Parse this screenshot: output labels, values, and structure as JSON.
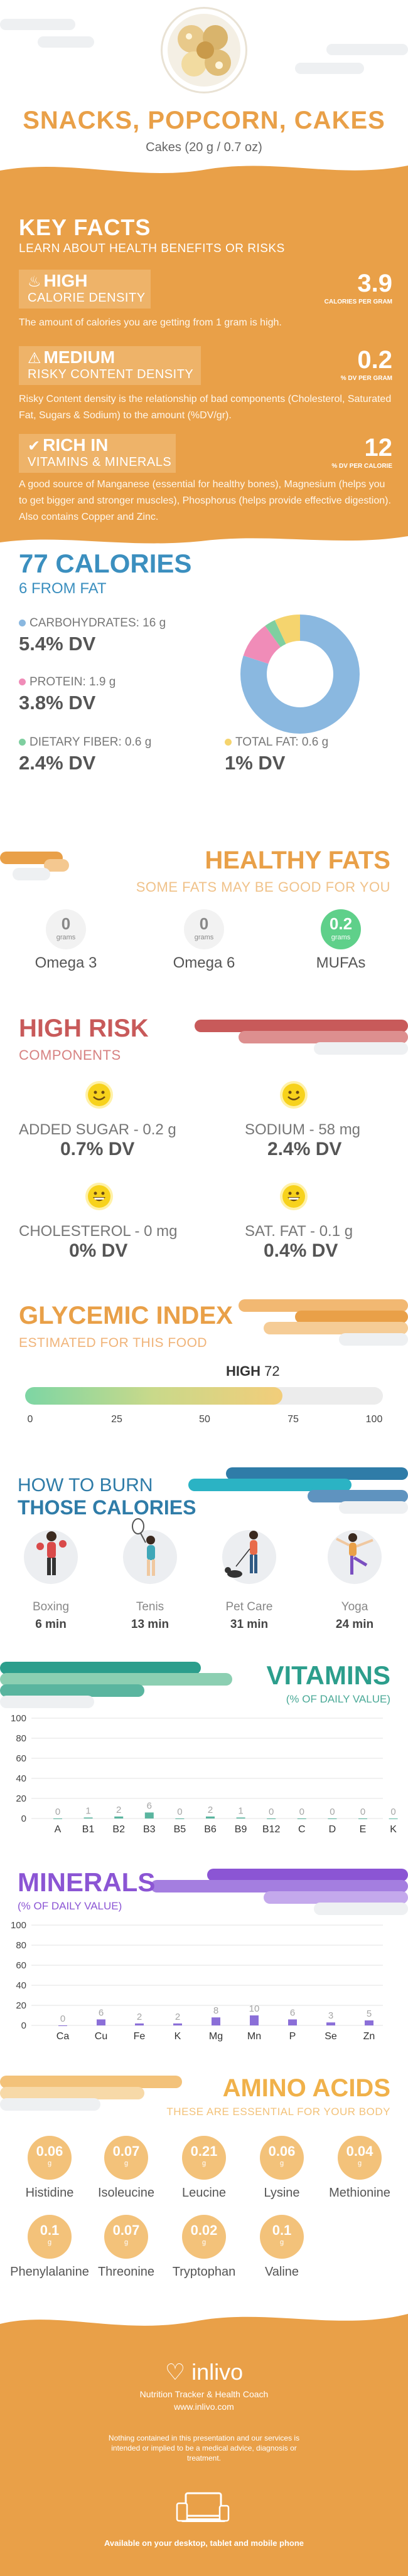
{
  "hero": {
    "title": "SNACKS, POPCORN, CAKES",
    "serving": "Cakes (20 g / 0.7 oz)"
  },
  "key_facts": {
    "title": "KEY FACTS",
    "subtitle": "LEARN ABOUT HEALTH BENEFITS OR RISKS",
    "items": [
      {
        "level": "HIGH",
        "label": "CALORIE DENSITY",
        "value": "3.9",
        "unit": "CALORIES PER GRAM",
        "icon": "flame-icon",
        "desc": "The amount of calories you are getting from 1 gram is high."
      },
      {
        "level": "MEDIUM",
        "label": "RISKY CONTENT DENSITY",
        "value": "0.2",
        "unit": "% DV PER GRAM",
        "icon": "warning-icon",
        "desc": "Risky Content density is the relationship of bad components (Cholesterol, Saturated Fat, Sugars & Sodium) to the amount (%DV/gr)."
      },
      {
        "level": "RICH  IN",
        "label": "VITAMINS & MINERALS",
        "value": "12",
        "unit": "% DV PER CALORIE",
        "icon": "thumbs-up-icon",
        "desc": "A good source of Manganese (essential for healthy bones), Magnesium (helps you to get bigger and stronger muscles), Phosphorus (helps provide effective digestion). Also contains Copper and Zinc."
      }
    ]
  },
  "calories": {
    "title": "77 CALORIES",
    "subtitle": "6 FROM FAT",
    "carbs": {
      "label": "CARBOHYDRATES: 16 g",
      "dv": "5.4% DV",
      "color": "#8ab8e0",
      "share": 0.8
    },
    "protein": {
      "label": "PROTEIN: 1.9 g",
      "dv": "3.8% DV",
      "color": "#f08cb8",
      "share": 0.1
    },
    "fiber": {
      "label": "DIETARY FIBER: 0.6 g",
      "dv": "2.4% DV",
      "color": "#7fcfa0",
      "share": 0.03
    },
    "fat": {
      "label": "TOTAL FAT: 0.6 g",
      "dv": "1% DV",
      "color": "#f5d46e",
      "share": 0.07
    }
  },
  "healthy_fats": {
    "title": "HEALTHY FATS",
    "subtitle": "SOME FATS MAY BE GOOD FOR YOU",
    "unit": "grams",
    "items": [
      {
        "name": "Omega 3",
        "value": "0"
      },
      {
        "name": "Omega 6",
        "value": "0"
      },
      {
        "name": "MUFAs",
        "value": "0.2"
      }
    ]
  },
  "high_risk": {
    "title": "HIGH RISK",
    "subtitle": "COMPONENTS",
    "items": [
      {
        "label": "ADDED SUGAR - 0.2 g",
        "dv": "0.7% DV",
        "icon": "smile-icon"
      },
      {
        "label": "SODIUM - 58 mg",
        "dv": "2.4% DV",
        "icon": "smile-icon"
      },
      {
        "label": "CHOLESTEROL - 0 mg",
        "dv": "0% DV",
        "icon": "grin-icon"
      },
      {
        "label": "SAT. FAT - 0.1 g",
        "dv": "0.4% DV",
        "icon": "grin-icon"
      }
    ]
  },
  "glycemic": {
    "title": "GLYCEMIC INDEX",
    "subtitle": "ESTIMATED FOR THIS FOOD",
    "level": "HIGH",
    "value": 72,
    "ticks": [
      "0",
      "25",
      "50",
      "75",
      "100"
    ]
  },
  "burn": {
    "title_line1": "HOW TO BURN",
    "title_line2": "THOSE CALORIES",
    "activities": [
      {
        "name": "Boxing",
        "time": "6 min",
        "icon": "boxing-icon"
      },
      {
        "name": "Tenis",
        "time": "13 min",
        "icon": "tennis-icon"
      },
      {
        "name": "Pet Care",
        "time": "31 min",
        "icon": "dog-walking-icon"
      },
      {
        "name": "Yoga",
        "time": "24 min",
        "icon": "yoga-icon"
      }
    ]
  },
  "vitamins": {
    "title": "VITAMINS",
    "subtitle": "(% OF DAILY VALUE)",
    "chart_data": {
      "type": "bar",
      "categories": [
        "A",
        "B1",
        "B2",
        "B3",
        "B5",
        "B6",
        "B9",
        "B12",
        "C",
        "D",
        "E",
        "K"
      ],
      "values": [
        0,
        1,
        2,
        6,
        0,
        2,
        1,
        0,
        0,
        0,
        0,
        0
      ],
      "ylim": [
        0,
        100
      ],
      "yticks": [
        "0",
        "20",
        "40",
        "60",
        "80",
        "100"
      ],
      "color": "#5ab59f"
    }
  },
  "minerals": {
    "title": "MINERALS",
    "subtitle": "(% OF DAILY VALUE)",
    "chart_data": {
      "type": "bar",
      "categories": [
        "Ca",
        "Cu",
        "Fe",
        "K",
        "Mg",
        "Mn",
        "P",
        "Se",
        "Zn"
      ],
      "values": [
        0,
        6,
        2,
        2,
        8,
        10,
        6,
        3,
        5
      ],
      "ylim": [
        0,
        100
      ],
      "yticks": [
        "0",
        "20",
        "40",
        "60",
        "80",
        "100"
      ],
      "color": "#8b6fd8"
    }
  },
  "amino": {
    "title": "AMINO ACIDS",
    "subtitle": "THESE ARE ESSENTIAL FOR YOUR BODY",
    "unit": "g",
    "items": [
      {
        "name": "Histidine",
        "value": "0.06"
      },
      {
        "name": "Isoleucine",
        "value": "0.07"
      },
      {
        "name": "Leucine",
        "value": "0.21"
      },
      {
        "name": "Lysine",
        "value": "0.06"
      },
      {
        "name": "Methionine",
        "value": "0.04"
      },
      {
        "name": "Phenylalanine",
        "value": "0.1"
      },
      {
        "name": "Threonine",
        "value": "0.07"
      },
      {
        "name": "Tryptophan",
        "value": "0.02"
      },
      {
        "name": "Valine",
        "value": "0.1"
      }
    ]
  },
  "footer": {
    "brand": "inlivo",
    "tagline": "Nutrition Tracker & Health Coach",
    "website": "www.inlivo.com",
    "disclaimer": "Nothing contained in this presentation and our services is intended or implied to be a medical advice, diagnosis or treatment.",
    "availability": "Available on your desktop, tablet and mobile phone"
  }
}
